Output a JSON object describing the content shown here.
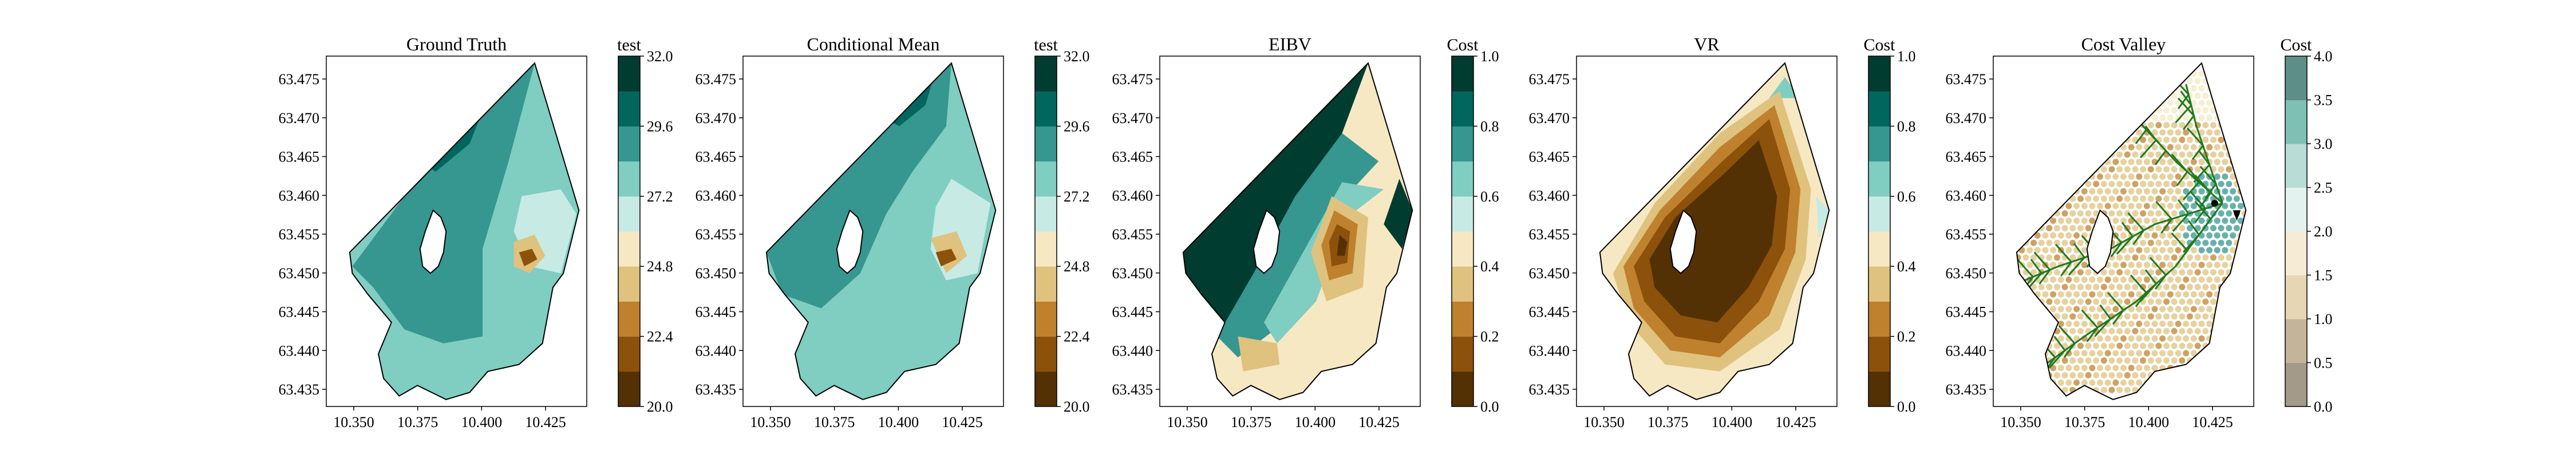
{
  "chart_data": [
    {
      "type": "contour",
      "title": "Ground Truth",
      "colorbar_label": "test",
      "colorbar_ticks": [
        "20.0",
        "22.4",
        "24.8",
        "27.2",
        "29.6",
        "32.0"
      ],
      "colorbar_range": [
        20.0,
        32.0
      ],
      "colormap": "BrBG",
      "xticks": [
        "10.350",
        "10.375",
        "10.400",
        "10.425"
      ],
      "yticks": [
        "63.435",
        "63.440",
        "63.445",
        "63.450",
        "63.455",
        "63.460",
        "63.465",
        "63.470",
        "63.475"
      ]
    },
    {
      "type": "contour",
      "title": "Conditional Mean",
      "colorbar_label": "test",
      "colorbar_ticks": [
        "20.0",
        "22.4",
        "24.8",
        "27.2",
        "29.6",
        "32.0"
      ],
      "colorbar_range": [
        20.0,
        32.0
      ],
      "colormap": "BrBG",
      "xticks": [
        "10.350",
        "10.375",
        "10.400",
        "10.425"
      ],
      "yticks": [
        "63.435",
        "63.440",
        "63.445",
        "63.450",
        "63.455",
        "63.460",
        "63.465",
        "63.470",
        "63.475"
      ]
    },
    {
      "type": "contour",
      "title": "EIBV",
      "colorbar_label": "Cost",
      "colorbar_ticks": [
        "0.0",
        "0.2",
        "0.4",
        "0.6",
        "0.8",
        "1.0"
      ],
      "colorbar_range": [
        0.0,
        1.0
      ],
      "colormap": "BrBG",
      "xticks": [
        "10.350",
        "10.375",
        "10.400",
        "10.425"
      ],
      "yticks": [
        "63.435",
        "63.440",
        "63.445",
        "63.450",
        "63.455",
        "63.460",
        "63.465",
        "63.470",
        "63.475"
      ]
    },
    {
      "type": "contour",
      "title": "VR",
      "colorbar_label": "Cost",
      "colorbar_ticks": [
        "0.0",
        "0.2",
        "0.4",
        "0.6",
        "0.8",
        "1.0"
      ],
      "colorbar_range": [
        0.0,
        1.0
      ],
      "colormap": "BrBG",
      "xticks": [
        "10.350",
        "10.375",
        "10.400",
        "10.425"
      ],
      "yticks": [
        "63.435",
        "63.440",
        "63.445",
        "63.450",
        "63.455",
        "63.460",
        "63.465",
        "63.470",
        "63.475"
      ]
    },
    {
      "type": "scatter",
      "title": "Cost Valley",
      "colorbar_label": "Cost",
      "colorbar_ticks": [
        "0.0",
        "0.5",
        "1.0",
        "1.5",
        "2.0",
        "2.5",
        "3.0",
        "3.5",
        "4.0"
      ],
      "colorbar_range": [
        0.0,
        4.0
      ],
      "colormap": "BrBG",
      "xticks": [
        "10.350",
        "10.375",
        "10.400",
        "10.425"
      ],
      "yticks": [
        "63.435",
        "63.440",
        "63.445",
        "63.450",
        "63.455",
        "63.460",
        "63.465",
        "63.470",
        "63.475"
      ]
    }
  ],
  "colors": {
    "levels": [
      "#543005",
      "#8c510a",
      "#bf812d",
      "#dfc27d",
      "#f6e8c3",
      "#c7eae5",
      "#80cdc1",
      "#35978f",
      "#01665e",
      "#003c30"
    ],
    "path": "#1f7a1f",
    "outline": "#000000"
  }
}
